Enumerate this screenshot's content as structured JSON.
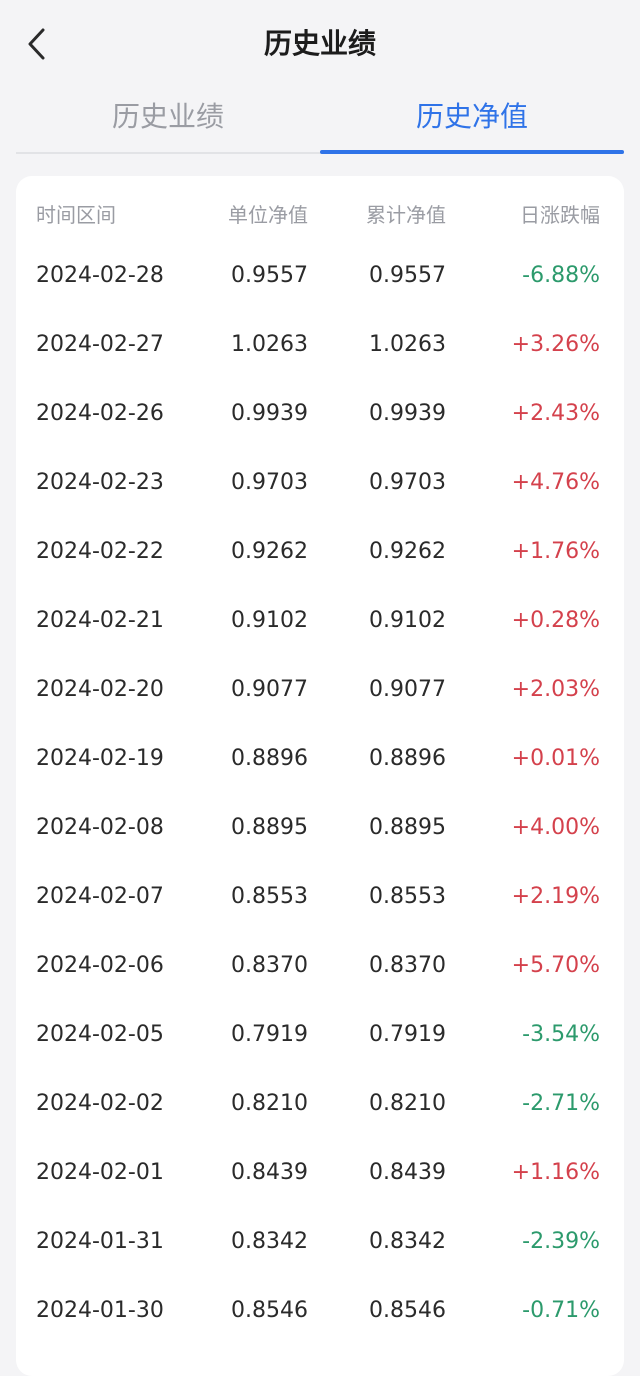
{
  "header": {
    "title": "历史业绩",
    "back_icon": "chevron-left-icon"
  },
  "tabs": [
    {
      "label": "历史业绩",
      "active": false
    },
    {
      "label": "历史净值",
      "active": true
    }
  ],
  "colors": {
    "accent": "#2f73e8",
    "up": "#d4414c",
    "down": "#2c9a6c",
    "muted": "#9a9ca3",
    "background": "#f4f4f6"
  },
  "table": {
    "columns": [
      "时间区间",
      "单位净值",
      "累计净值",
      "日涨跌幅"
    ],
    "rows": [
      {
        "date": "2024-02-28",
        "unit_nav": "0.9557",
        "acc_nav": "0.9557",
        "change": "-6.88%",
        "direction": "down"
      },
      {
        "date": "2024-02-27",
        "unit_nav": "1.0263",
        "acc_nav": "1.0263",
        "change": "+3.26%",
        "direction": "up"
      },
      {
        "date": "2024-02-26",
        "unit_nav": "0.9939",
        "acc_nav": "0.9939",
        "change": "+2.43%",
        "direction": "up"
      },
      {
        "date": "2024-02-23",
        "unit_nav": "0.9703",
        "acc_nav": "0.9703",
        "change": "+4.76%",
        "direction": "up"
      },
      {
        "date": "2024-02-22",
        "unit_nav": "0.9262",
        "acc_nav": "0.9262",
        "change": "+1.76%",
        "direction": "up"
      },
      {
        "date": "2024-02-21",
        "unit_nav": "0.9102",
        "acc_nav": "0.9102",
        "change": "+0.28%",
        "direction": "up"
      },
      {
        "date": "2024-02-20",
        "unit_nav": "0.9077",
        "acc_nav": "0.9077",
        "change": "+2.03%",
        "direction": "up"
      },
      {
        "date": "2024-02-19",
        "unit_nav": "0.8896",
        "acc_nav": "0.8896",
        "change": "+0.01%",
        "direction": "up"
      },
      {
        "date": "2024-02-08",
        "unit_nav": "0.8895",
        "acc_nav": "0.8895",
        "change": "+4.00%",
        "direction": "up"
      },
      {
        "date": "2024-02-07",
        "unit_nav": "0.8553",
        "acc_nav": "0.8553",
        "change": "+2.19%",
        "direction": "up"
      },
      {
        "date": "2024-02-06",
        "unit_nav": "0.8370",
        "acc_nav": "0.8370",
        "change": "+5.70%",
        "direction": "up"
      },
      {
        "date": "2024-02-05",
        "unit_nav": "0.7919",
        "acc_nav": "0.7919",
        "change": "-3.54%",
        "direction": "down"
      },
      {
        "date": "2024-02-02",
        "unit_nav": "0.8210",
        "acc_nav": "0.8210",
        "change": "-2.71%",
        "direction": "down"
      },
      {
        "date": "2024-02-01",
        "unit_nav": "0.8439",
        "acc_nav": "0.8439",
        "change": "+1.16%",
        "direction": "up"
      },
      {
        "date": "2024-01-31",
        "unit_nav": "0.8342",
        "acc_nav": "0.8342",
        "change": "-2.39%",
        "direction": "down"
      },
      {
        "date": "2024-01-30",
        "unit_nav": "0.8546",
        "acc_nav": "0.8546",
        "change": "-0.71%",
        "direction": "down"
      }
    ]
  }
}
